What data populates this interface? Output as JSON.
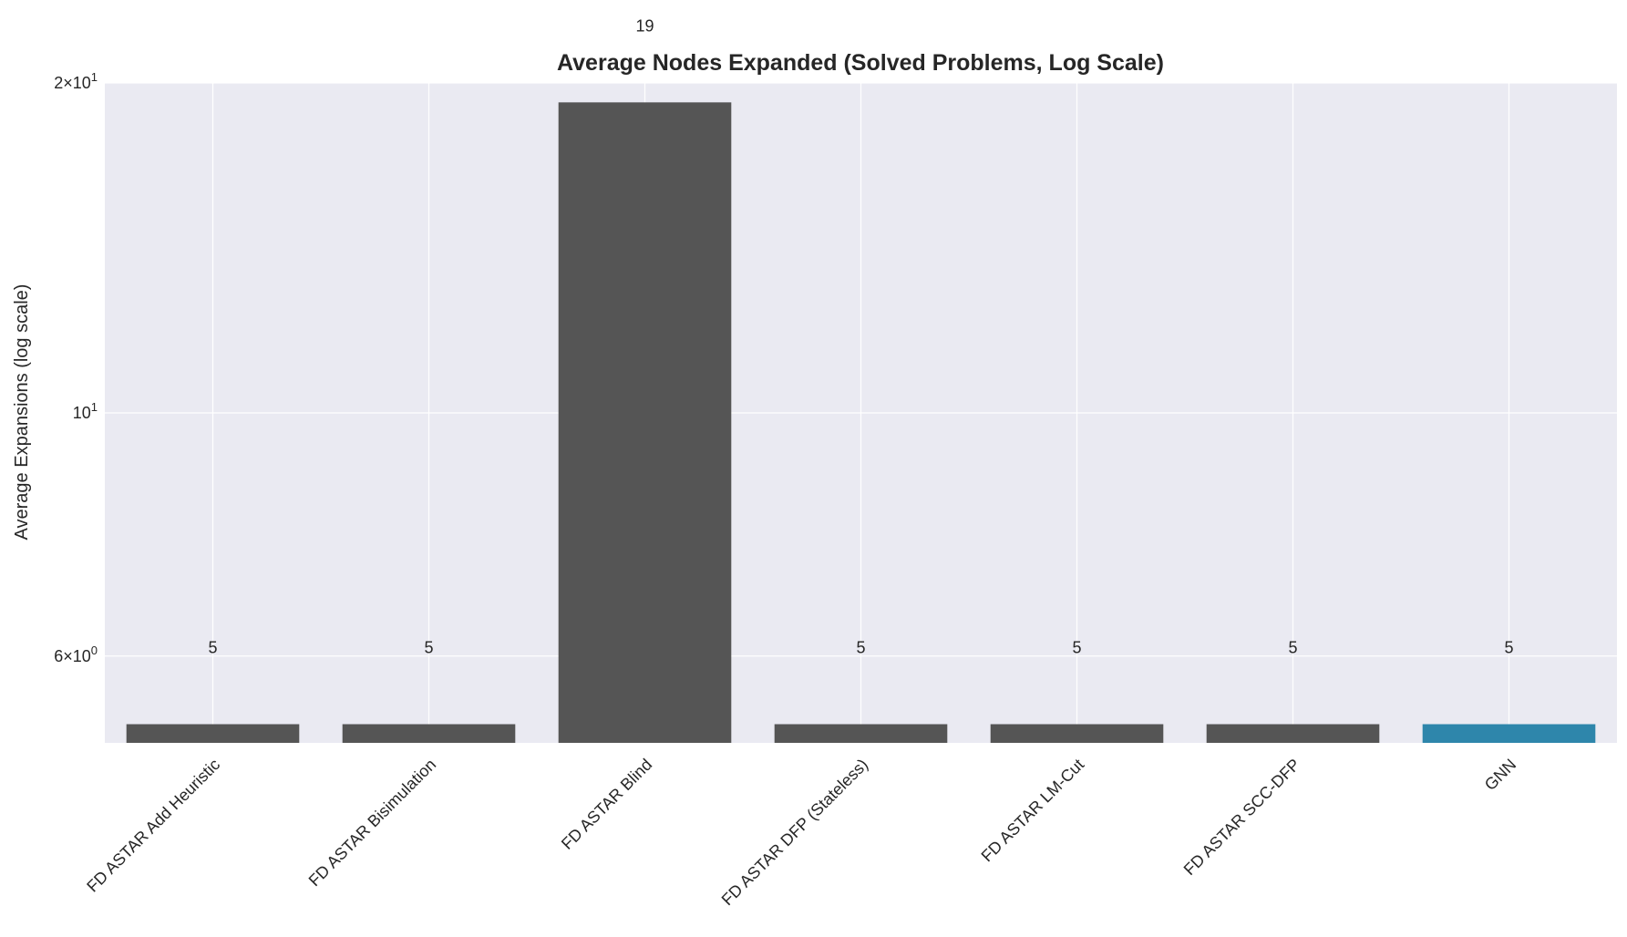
{
  "chart_data": {
    "type": "bar",
    "title": "Average Nodes Expanded (Solved Problems, Log Scale)",
    "xlabel": "",
    "ylabel": "Average Expansions (log scale)",
    "yscale": "log",
    "ylim": [
      5.0,
      20.0
    ],
    "yticks": [
      {
        "value": 6,
        "mantissa": "6",
        "exp": "0"
      },
      {
        "value": 10,
        "mantissa": "",
        "exp": "1"
      },
      {
        "value": 20,
        "mantissa": "2",
        "exp": "1"
      }
    ],
    "grid": true,
    "categories": [
      "FD ASTAR Add Heuristic",
      "FD ASTAR Bisimulation",
      "FD ASTAR Blind",
      "FD ASTAR DFP (Stateless)",
      "FD ASTAR LM-Cut",
      "FD ASTAR SCC-DFP",
      "GNN"
    ],
    "values": [
      5.2,
      5.2,
      19.2,
      5.2,
      5.2,
      5.2,
      5.2
    ],
    "data_labels": [
      "5",
      "5",
      "19",
      "5",
      "5",
      "5",
      "5"
    ],
    "colors": [
      "#555555",
      "#555555",
      "#555555",
      "#555555",
      "#555555",
      "#555555",
      "#2e86ab"
    ]
  }
}
